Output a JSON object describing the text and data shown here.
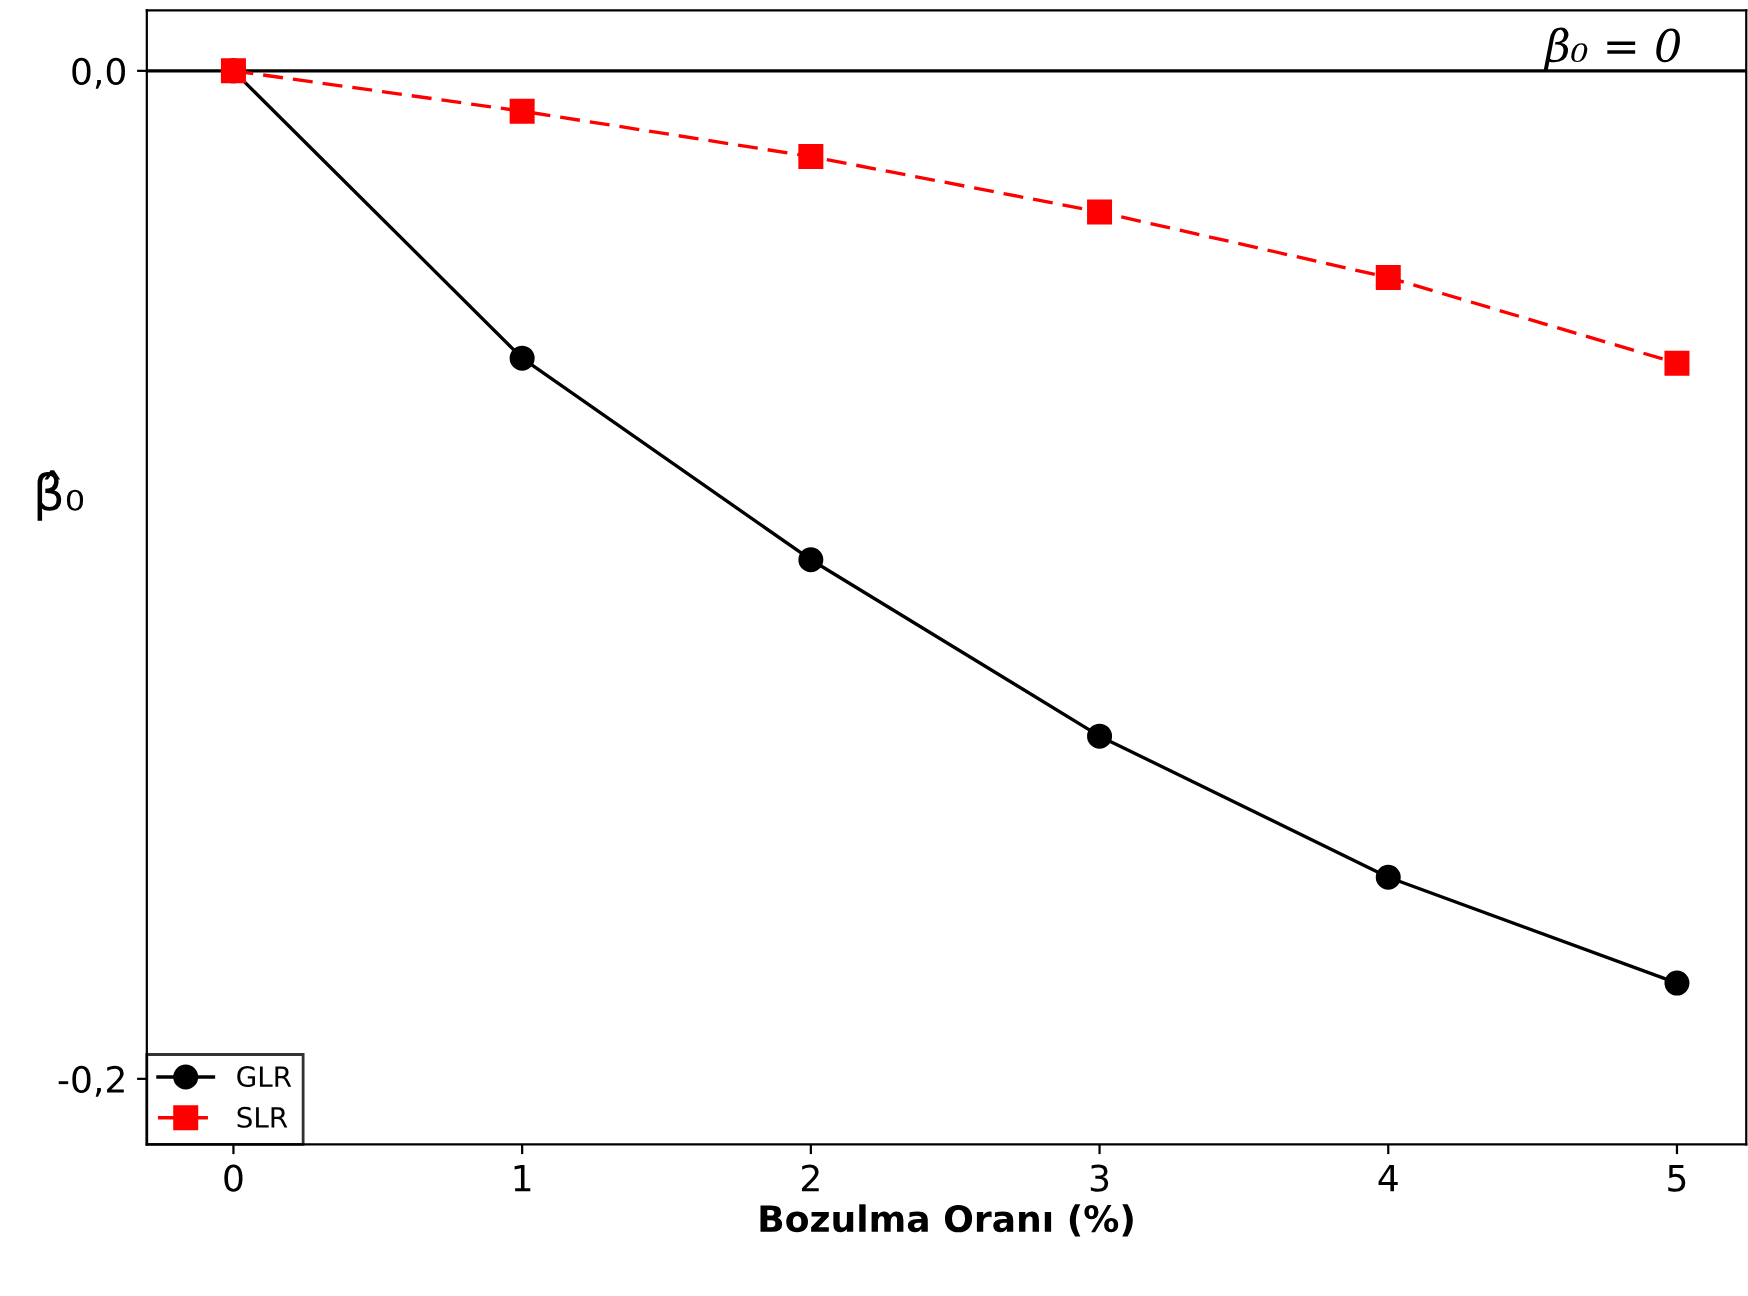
{
  "chart_data": {
    "type": "line",
    "xlabel": "Bozulma Oranı (%)",
    "ylabel": "β̂₀",
    "x": [
      0,
      1,
      2,
      3,
      4,
      5
    ],
    "series": [
      {
        "name": "GLR",
        "color": "#000000",
        "marker": "circle",
        "line_style": "solid",
        "values": [
          0.0,
          -0.057,
          -0.097,
          -0.132,
          -0.16,
          -0.181
        ]
      },
      {
        "name": "SLR",
        "color": "#ff0000",
        "marker": "square",
        "line_style": "dashed",
        "values": [
          0.0,
          -0.008,
          -0.017,
          -0.028,
          -0.041,
          -0.058
        ]
      }
    ],
    "xlim": [
      -0.3,
      5.24
    ],
    "ylim": [
      -0.213,
      0.012
    ],
    "xticks": [
      0,
      1,
      2,
      3,
      4,
      5
    ],
    "yticks": [
      {
        "value": 0.0,
        "label": "0,0"
      },
      {
        "value": -0.2,
        "label": "-0,2"
      }
    ],
    "ref_lines": [
      {
        "axis": "y",
        "value": 0.0,
        "label": "β₀ = 0",
        "color": "#000000"
      }
    ],
    "grid": false,
    "legend": "bottom left"
  }
}
